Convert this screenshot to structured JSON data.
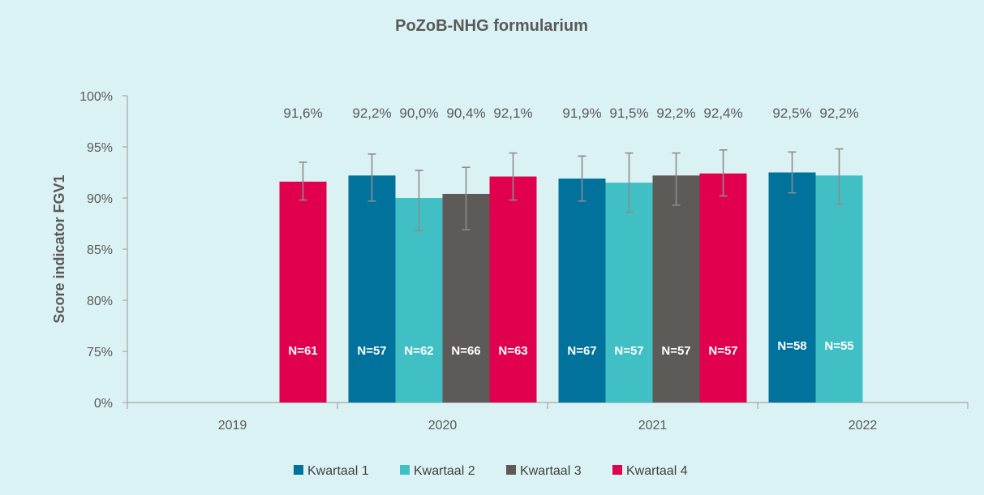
{
  "chart_data": {
    "type": "bar",
    "title": "PoZoB-NHG formularium",
    "ylabel": "Score indicator FGV1",
    "xlabel": "",
    "categories": [
      "2019",
      "2020",
      "2021",
      "2022"
    ],
    "y_ticks": [
      "0%",
      "75%",
      "80%",
      "85%",
      "90%",
      "95%",
      "100%"
    ],
    "y_axis_break": "0% to 75% collapsed into first interval",
    "ylim": [
      0,
      100
    ],
    "grid": false,
    "legend_position": "bottom",
    "series": [
      {
        "name": "Kwartaal 1",
        "color": "#00729c",
        "values": [
          null,
          92.2,
          91.9,
          92.5
        ],
        "value_labels": [
          null,
          "92,2%",
          "91,9%",
          "92,5%"
        ],
        "n_labels": [
          null,
          "N=57",
          "N=67",
          "N=58"
        ],
        "error_low": [
          null,
          89.7,
          89.7,
          90.5
        ],
        "error_high": [
          null,
          94.3,
          94.1,
          94.5
        ]
      },
      {
        "name": "Kwartaal 2",
        "color": "#40c0c4",
        "values": [
          null,
          90.0,
          91.5,
          92.2
        ],
        "value_labels": [
          null,
          "90,0%",
          "91,5%",
          "92,2%"
        ],
        "n_labels": [
          null,
          "N=62",
          "N=57",
          "N=55"
        ],
        "error_low": [
          null,
          86.8,
          88.6,
          89.4
        ],
        "error_high": [
          null,
          92.7,
          94.4,
          94.8
        ]
      },
      {
        "name": "Kwartaal 3",
        "color": "#5e5a57",
        "values": [
          null,
          90.4,
          92.2,
          null
        ],
        "value_labels": [
          null,
          "90,4%",
          "92,2%",
          null
        ],
        "n_labels": [
          null,
          "N=66",
          "N=57",
          null
        ],
        "error_low": [
          null,
          86.9,
          89.3,
          null
        ],
        "error_high": [
          null,
          93.0,
          94.4,
          null
        ]
      },
      {
        "name": "Kwartaal 4",
        "color": "#e0004d",
        "values": [
          91.6,
          92.1,
          92.4,
          null
        ],
        "value_labels": [
          "91,6%",
          "92,1%",
          "92,4%",
          null
        ],
        "n_labels": [
          "N=61",
          "N=63",
          "N=57",
          null
        ],
        "error_low": [
          89.8,
          89.8,
          90.2,
          null
        ],
        "error_high": [
          93.5,
          94.4,
          94.7,
          null
        ]
      }
    ]
  }
}
